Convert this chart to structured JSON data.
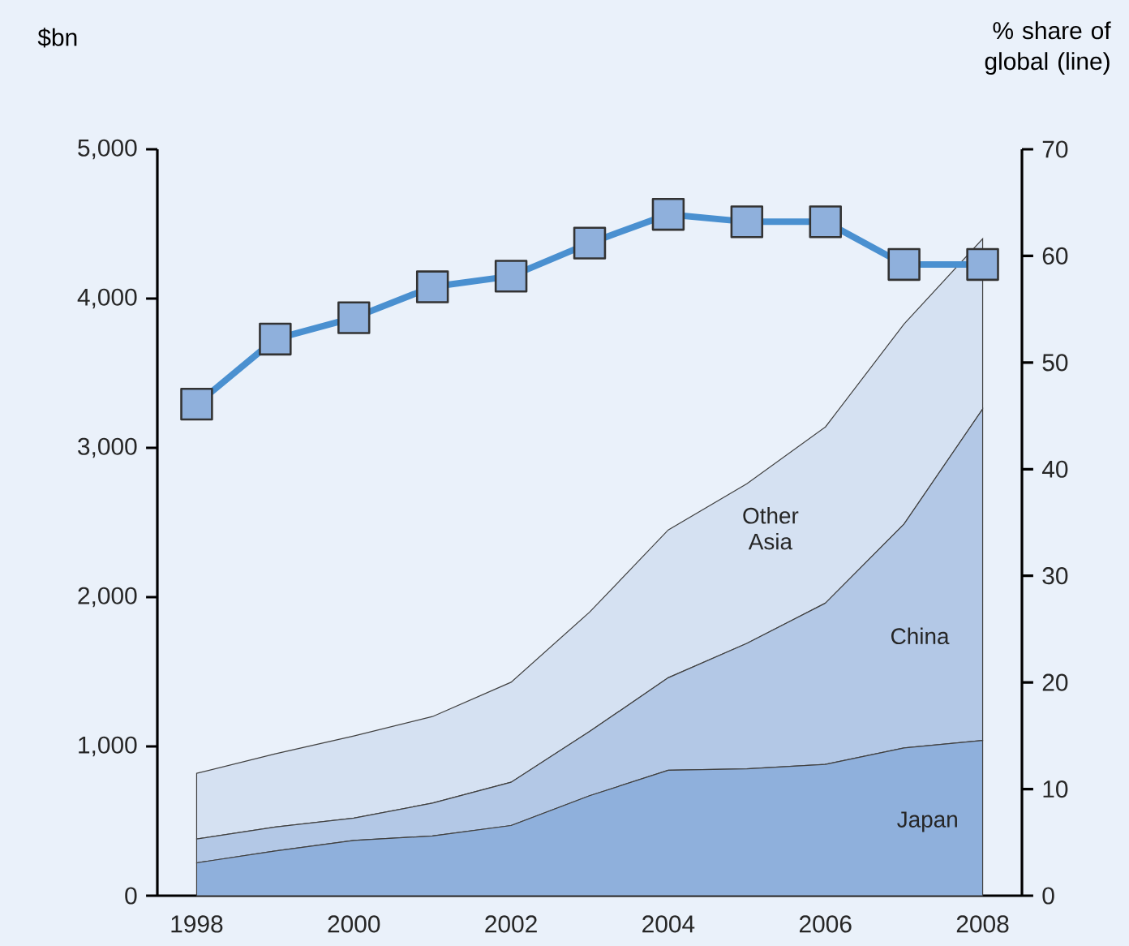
{
  "chart_data": {
    "type": "area",
    "stacked": true,
    "ylabel": "$bn",
    "y2label": "% share of global (line)",
    "x": [
      1998,
      1999,
      2000,
      2001,
      2002,
      2003,
      2004,
      2005,
      2006,
      2007,
      2008
    ],
    "xlim": [
      1997.5,
      2008.5
    ],
    "xticks": [
      1998,
      2000,
      2002,
      2004,
      2006,
      2008
    ],
    "ylim": [
      0,
      5000
    ],
    "yticks": [
      0,
      {
        "value": 1000,
        "label": "1,000"
      },
      {
        "value": 2000,
        "label": "2,000"
      },
      {
        "value": 3000,
        "label": "3,000"
      },
      {
        "value": 4000,
        "label": "4,000"
      },
      {
        "value": 5000,
        "label": "5,000"
      }
    ],
    "y2lim": [
      0,
      70
    ],
    "y2ticks": [
      0,
      10,
      20,
      30,
      40,
      50,
      60,
      70
    ],
    "series": [
      {
        "name": "Japan",
        "color": "#8fb0dc",
        "values": [
          220,
          300,
          370,
          400,
          470,
          670,
          840,
          850,
          880,
          990,
          1040
        ]
      },
      {
        "name": "China",
        "color": "#b3c8e6",
        "values": [
          160,
          160,
          150,
          220,
          290,
          430,
          620,
          840,
          1080,
          1500,
          2220
        ]
      },
      {
        "name": "Other Asia",
        "color": "#d5e1f2",
        "values": [
          440,
          490,
          550,
          580,
          670,
          800,
          990,
          1070,
          1180,
          1340,
          1140
        ]
      },
      {
        "type": "line",
        "axis": "y2",
        "color": "#4a90d0",
        "marker": "square",
        "values": [
          46.1,
          52.2,
          54.2,
          57.1,
          58.1,
          61.2,
          63.9,
          63.2,
          63.2,
          59.2,
          59.2
        ]
      }
    ]
  }
}
